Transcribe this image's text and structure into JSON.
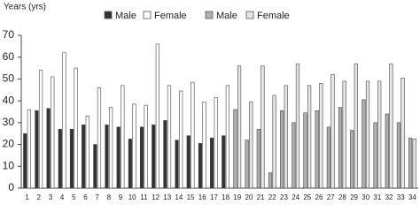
{
  "chart_data": {
    "type": "bar",
    "y_label": "Years (yrs)",
    "categories": [
      "1",
      "2",
      "3",
      "4",
      "5",
      "6",
      "7",
      "8",
      "9",
      "10",
      "11",
      "12",
      "13",
      "14",
      "15",
      "16",
      "17",
      "18",
      "19",
      "20",
      "21",
      "22",
      "23",
      "24",
      "25",
      "26",
      "27",
      "28",
      "29",
      "30",
      "31",
      "32",
      "33",
      "34"
    ],
    "series": [
      {
        "name": "Male",
        "color": "#333333",
        "values": [
          25,
          35.5,
          36.5,
          27,
          27,
          29,
          20,
          29,
          28,
          22.5,
          28,
          29,
          31,
          22,
          24,
          20.5,
          23,
          24,
          null,
          null,
          null,
          null,
          null,
          null,
          null,
          null,
          null,
          null,
          null,
          null,
          null,
          null,
          null,
          null
        ]
      },
      {
        "name": "Female",
        "color": "#ffffff",
        "values": [
          36,
          54,
          51,
          62,
          55,
          33,
          46,
          37,
          47,
          38.5,
          38,
          66,
          47,
          44.5,
          48.5,
          39.5,
          41.5,
          47,
          null,
          null,
          null,
          null,
          null,
          null,
          null,
          null,
          null,
          null,
          null,
          null,
          null,
          null,
          null,
          null
        ]
      },
      {
        "name": "Male",
        "color": "#b0b0b0",
        "values": [
          null,
          null,
          null,
          null,
          null,
          null,
          null,
          null,
          null,
          null,
          null,
          null,
          null,
          null,
          null,
          null,
          null,
          null,
          36,
          22,
          27,
          7,
          35.5,
          30,
          34.5,
          35.5,
          28,
          37,
          26.5,
          40.5,
          30,
          34,
          30,
          23
        ]
      },
      {
        "name": "Female",
        "color": "#e6e6e6",
        "values": [
          null,
          null,
          null,
          null,
          null,
          null,
          null,
          null,
          null,
          null,
          null,
          null,
          null,
          null,
          null,
          null,
          null,
          null,
          56,
          39.5,
          56,
          42.5,
          47,
          57,
          47,
          48,
          52,
          49,
          57,
          49,
          49,
          57,
          50.5,
          22.5
        ]
      }
    ],
    "ylim": [
      0,
      70
    ],
    "yticks": [
      0,
      10,
      20,
      30,
      40,
      50,
      60,
      70
    ],
    "grid": false
  }
}
